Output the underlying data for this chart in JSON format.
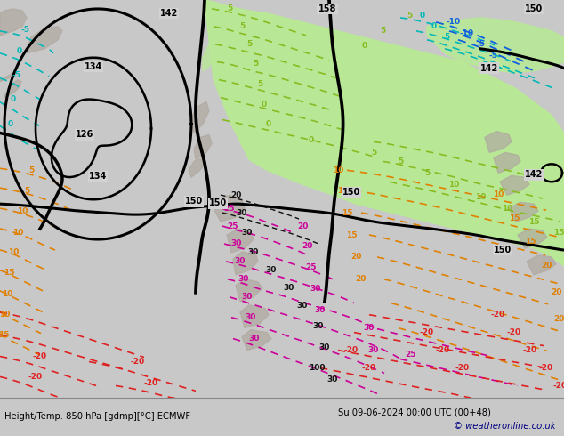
{
  "title_left": "Height/Temp. 850 hPa [gdmp][°C] ECMWF",
  "title_right": "Su 09-06-2024 00:00 UTC (00+48)",
  "copyright": "© weatheronline.co.uk",
  "fig_width": 6.34,
  "fig_height": 4.9,
  "dpi": 100,
  "map_gray": "#d2d2d2",
  "green_light": "#b8e896",
  "terrain_gray": "#b0a8a0",
  "footer_bg": "#e0e0e0"
}
